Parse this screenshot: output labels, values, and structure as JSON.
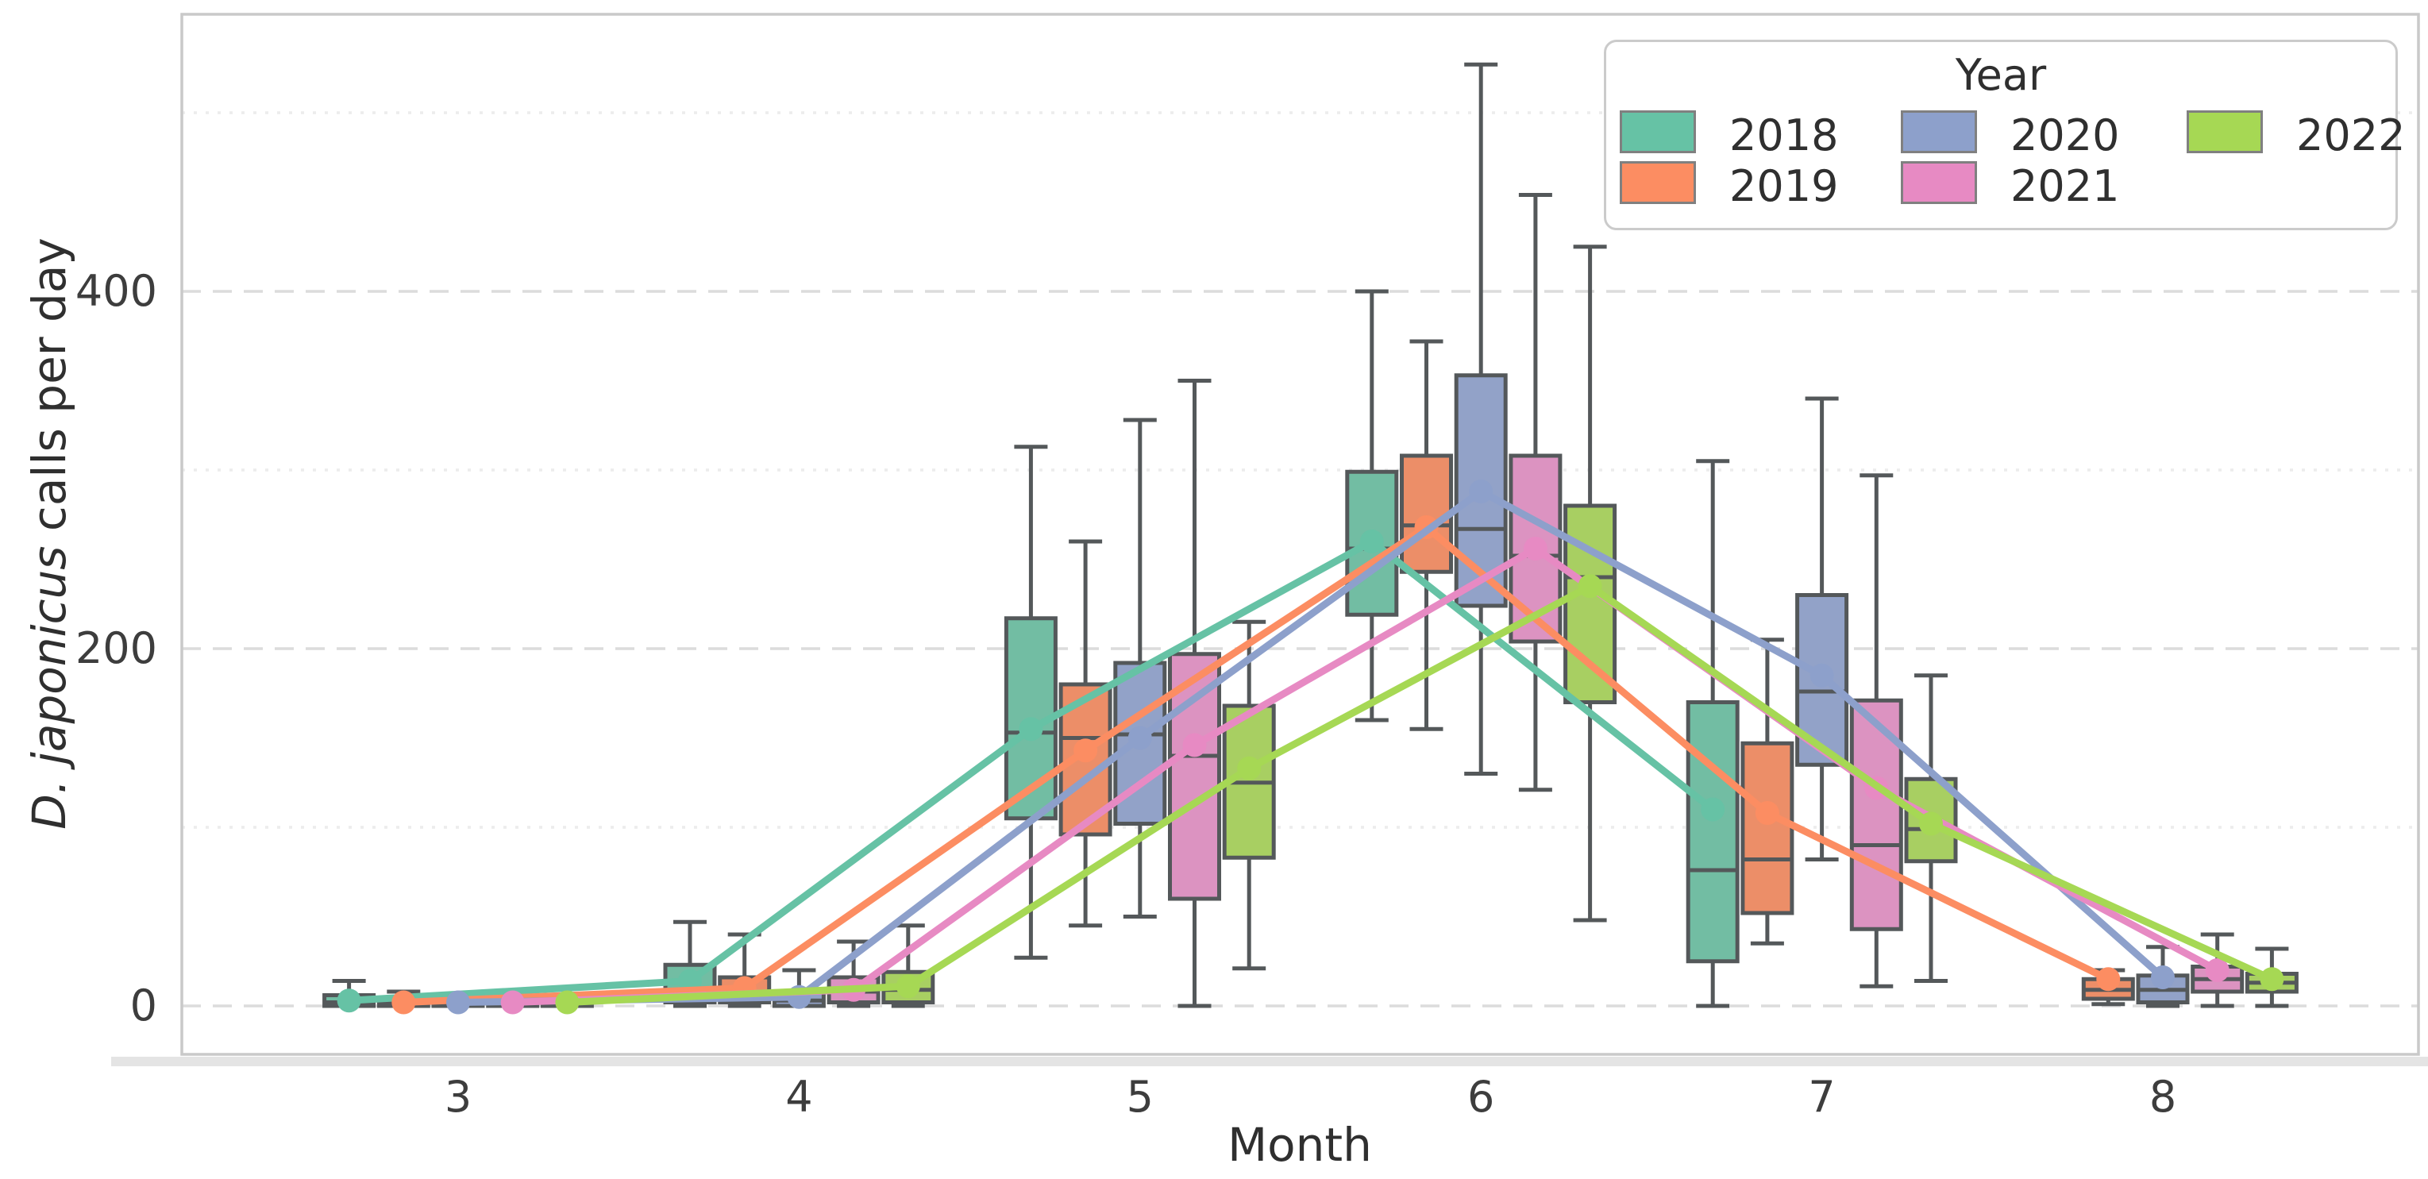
{
  "chart_data": {
    "type": "boxplot+pointplot",
    "xlabel": "Month",
    "ylabel_italic": "D. japonicus",
    "ylabel_rest": " calls per day",
    "categories": [
      3,
      4,
      5,
      6,
      7,
      8
    ],
    "xtick_labels": [
      "3",
      "4",
      "5",
      "6",
      "7",
      "8"
    ],
    "ytick_labels": [
      "0",
      "200",
      "400"
    ],
    "ytick_values": [
      0,
      200,
      400
    ],
    "ylim": [
      -26,
      558
    ],
    "grid": "horizontal",
    "gridlines": [
      {
        "v": 0,
        "style": "dashed"
      },
      {
        "v": 100,
        "style": "dotted"
      },
      {
        "v": 200,
        "style": "dashed"
      },
      {
        "v": 300,
        "style": "dotted"
      },
      {
        "v": 400,
        "style": "dashed"
      },
      {
        "v": 500,
        "style": "dotted"
      }
    ],
    "legend": {
      "title": "Year",
      "position": "upper right",
      "entries": [
        {
          "label": "2018",
          "color": "#66c2a5"
        },
        {
          "label": "2019",
          "color": "#fc8d62"
        },
        {
          "label": "2020",
          "color": "#8da0cb"
        },
        {
          "label": "2021",
          "color": "#e78ac3"
        },
        {
          "label": "2022",
          "color": "#a6d854"
        }
      ]
    },
    "series": [
      {
        "year": "2018",
        "line_color": "#66c2a5",
        "box_color": "#72bda3",
        "boxes": [
          {
            "month": 3,
            "whislo": 0,
            "q1": 0,
            "med": 2,
            "q3": 6,
            "whishi": 14,
            "mean": 3
          },
          {
            "month": 4,
            "whislo": 0,
            "q1": 2,
            "med": 6,
            "q3": 23,
            "whishi": 47,
            "mean": 14
          },
          {
            "month": 5,
            "whislo": 27,
            "q1": 105,
            "med": 153,
            "q3": 217,
            "whishi": 313,
            "mean": 155
          },
          {
            "month": 6,
            "whislo": 160,
            "q1": 219,
            "med": 256,
            "q3": 299,
            "whishi": 400,
            "mean": 260
          },
          {
            "month": 7,
            "whislo": 0,
            "q1": 25,
            "med": 76,
            "q3": 170,
            "whishi": 305,
            "mean": 110
          }
        ]
      },
      {
        "year": "2019",
        "line_color": "#fc8d62",
        "box_color": "#ec8e68",
        "boxes": [
          {
            "month": 3,
            "whislo": 0,
            "q1": 0,
            "med": 1,
            "q3": 3,
            "whishi": 8,
            "mean": 2
          },
          {
            "month": 4,
            "whislo": 0,
            "q1": 2,
            "med": 7,
            "q3": 16,
            "whishi": 40,
            "mean": 10
          },
          {
            "month": 5,
            "whislo": 45,
            "q1": 96,
            "med": 150,
            "q3": 180,
            "whishi": 260,
            "mean": 143
          },
          {
            "month": 6,
            "whislo": 155,
            "q1": 243,
            "med": 269,
            "q3": 308,
            "whishi": 372,
            "mean": 268
          },
          {
            "month": 7,
            "whislo": 35,
            "q1": 52,
            "med": 82,
            "q3": 147,
            "whishi": 205,
            "mean": 108
          },
          {
            "month": 8,
            "whislo": 1,
            "q1": 4,
            "med": 9,
            "q3": 15,
            "whishi": 20,
            "mean": 15
          }
        ]
      },
      {
        "year": "2020",
        "line_color": "#8da0cb",
        "box_color": "#92a2c8",
        "boxes": [
          {
            "month": 3,
            "whislo": 0,
            "q1": 0,
            "med": 1,
            "q3": 2,
            "whishi": 5,
            "mean": 2
          },
          {
            "month": 4,
            "whislo": 0,
            "q1": 0,
            "med": 3,
            "q3": 8,
            "whishi": 20,
            "mean": 5
          },
          {
            "month": 5,
            "whislo": 50,
            "q1": 102,
            "med": 152,
            "q3": 192,
            "whishi": 328,
            "mean": 150
          },
          {
            "month": 6,
            "whislo": 130,
            "q1": 224,
            "med": 267,
            "q3": 353,
            "whishi": 527,
            "mean": 288
          },
          {
            "month": 7,
            "whislo": 82,
            "q1": 135,
            "med": 176,
            "q3": 230,
            "whishi": 340,
            "mean": 185
          },
          {
            "month": 8,
            "whislo": 0,
            "q1": 2,
            "med": 9,
            "q3": 17,
            "whishi": 33,
            "mean": 16
          }
        ]
      },
      {
        "year": "2021",
        "line_color": "#e78ac3",
        "box_color": "#dc93c1",
        "boxes": [
          {
            "month": 3,
            "whislo": 0,
            "q1": 0,
            "med": 1,
            "q3": 2,
            "whishi": 5,
            "mean": 2
          },
          {
            "month": 4,
            "whislo": 0,
            "q1": 2,
            "med": 8,
            "q3": 16,
            "whishi": 36,
            "mean": 9
          },
          {
            "month": 5,
            "whislo": 0,
            "q1": 60,
            "med": 140,
            "q3": 197,
            "whishi": 350,
            "mean": 146
          },
          {
            "month": 6,
            "whislo": 121,
            "q1": 204,
            "med": 252,
            "q3": 308,
            "whishi": 454,
            "mean": 256
          },
          {
            "month": 7,
            "whislo": 11,
            "q1": 43,
            "med": 90,
            "q3": 171,
            "whishi": 297,
            "mean": 122
          },
          {
            "month": 8,
            "whislo": 0,
            "q1": 8,
            "med": 15,
            "q3": 22,
            "whishi": 40,
            "mean": 20
          }
        ]
      },
      {
        "year": "2022",
        "line_color": "#a6d854",
        "box_color": "#a8cf62",
        "boxes": [
          {
            "month": 3,
            "whislo": 0,
            "q1": 0,
            "med": 1,
            "q3": 3,
            "whishi": 6,
            "mean": 2
          },
          {
            "month": 4,
            "whislo": 0,
            "q1": 2,
            "med": 9,
            "q3": 19,
            "whishi": 45,
            "mean": 11
          },
          {
            "month": 5,
            "whislo": 21,
            "q1": 83,
            "med": 125,
            "q3": 168,
            "whishi": 215,
            "mean": 133
          },
          {
            "month": 6,
            "whislo": 48,
            "q1": 170,
            "med": 240,
            "q3": 280,
            "whishi": 425,
            "mean": 235
          },
          {
            "month": 7,
            "whislo": 14,
            "q1": 81,
            "med": 99,
            "q3": 127,
            "whishi": 185,
            "mean": 102
          },
          {
            "month": 8,
            "whislo": 0,
            "q1": 8,
            "med": 13,
            "q3": 18,
            "whishi": 32,
            "mean": 15
          }
        ]
      }
    ],
    "style": {
      "major_grid_color": "#dcdcdc",
      "minor_grid_color": "#ececec",
      "spine_color": "#c9c9c9",
      "box_edge_color": "#54585a",
      "shadow_band_color": "#e4e4e4",
      "background": "#ffffff"
    }
  }
}
